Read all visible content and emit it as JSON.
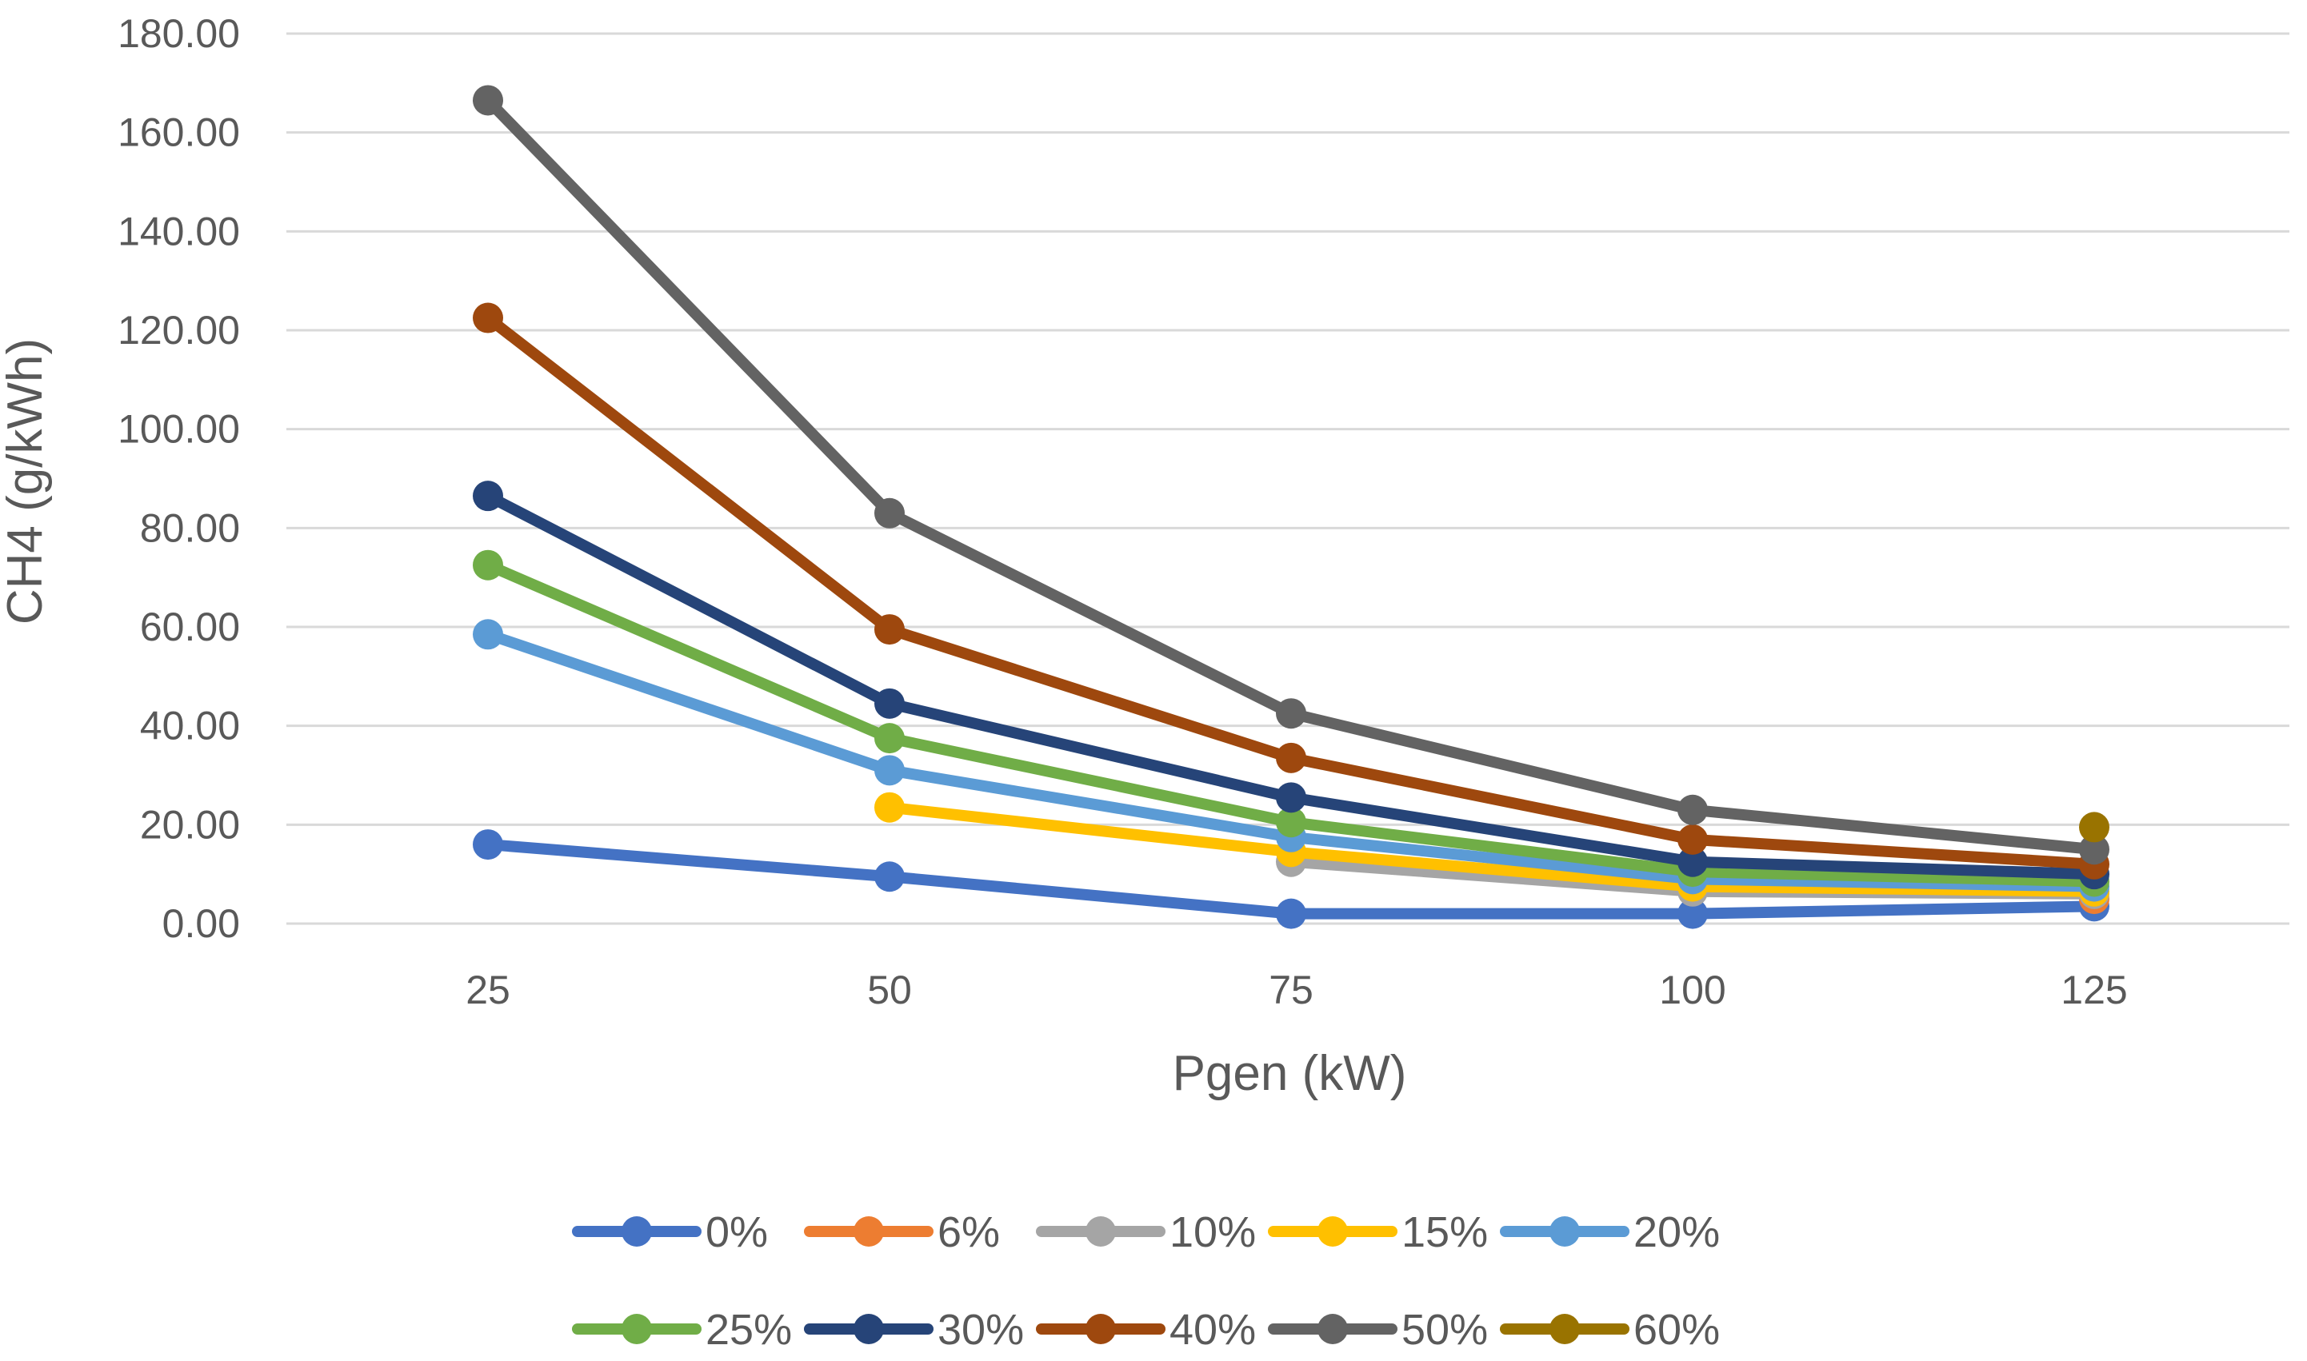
{
  "chart_data": {
    "type": "line",
    "title": "",
    "xlabel": "Pgen (kW)",
    "ylabel": "CH4 (g/kWh)",
    "categories": [
      "25",
      "50",
      "75",
      "100",
      "125"
    ],
    "ylim": [
      0,
      180
    ],
    "yticks": [
      "0.00",
      "20.00",
      "40.00",
      "60.00",
      "80.00",
      "100.00",
      "120.00",
      "140.00",
      "160.00",
      "180.00"
    ],
    "grid": true,
    "legend_position": "bottom",
    "series": [
      {
        "name": "0%",
        "color": "#4472C4",
        "values": [
          16,
          9.5,
          2,
          2,
          3.5
        ]
      },
      {
        "name": "6%",
        "color": "#ED7D31",
        "values": [
          null,
          null,
          null,
          null,
          5
        ]
      },
      {
        "name": "10%",
        "color": "#A5A5A5",
        "values": [
          null,
          null,
          12.5,
          6.5,
          6
        ]
      },
      {
        "name": "15%",
        "color": "#FFC000",
        "values": [
          null,
          23.5,
          14.5,
          7.5,
          6.5
        ]
      },
      {
        "name": "20%",
        "color": "#5B9BD5",
        "values": [
          58.5,
          31,
          17.5,
          9,
          7.5
        ]
      },
      {
        "name": "25%",
        "color": "#70AD47",
        "values": [
          72.5,
          37.5,
          20.5,
          10.5,
          8.5
        ]
      },
      {
        "name": "30%",
        "color": "#264478",
        "values": [
          86.5,
          44.5,
          25.5,
          12.5,
          10
        ]
      },
      {
        "name": "40%",
        "color": "#9E480E",
        "values": [
          122.5,
          59.5,
          33.5,
          17,
          12
        ]
      },
      {
        "name": "50%",
        "color": "#636363",
        "values": [
          166.5,
          83,
          42.5,
          23,
          15
        ]
      },
      {
        "name": "60%",
        "color": "#997300",
        "values": [
          null,
          null,
          null,
          null,
          19.5
        ]
      }
    ]
  }
}
